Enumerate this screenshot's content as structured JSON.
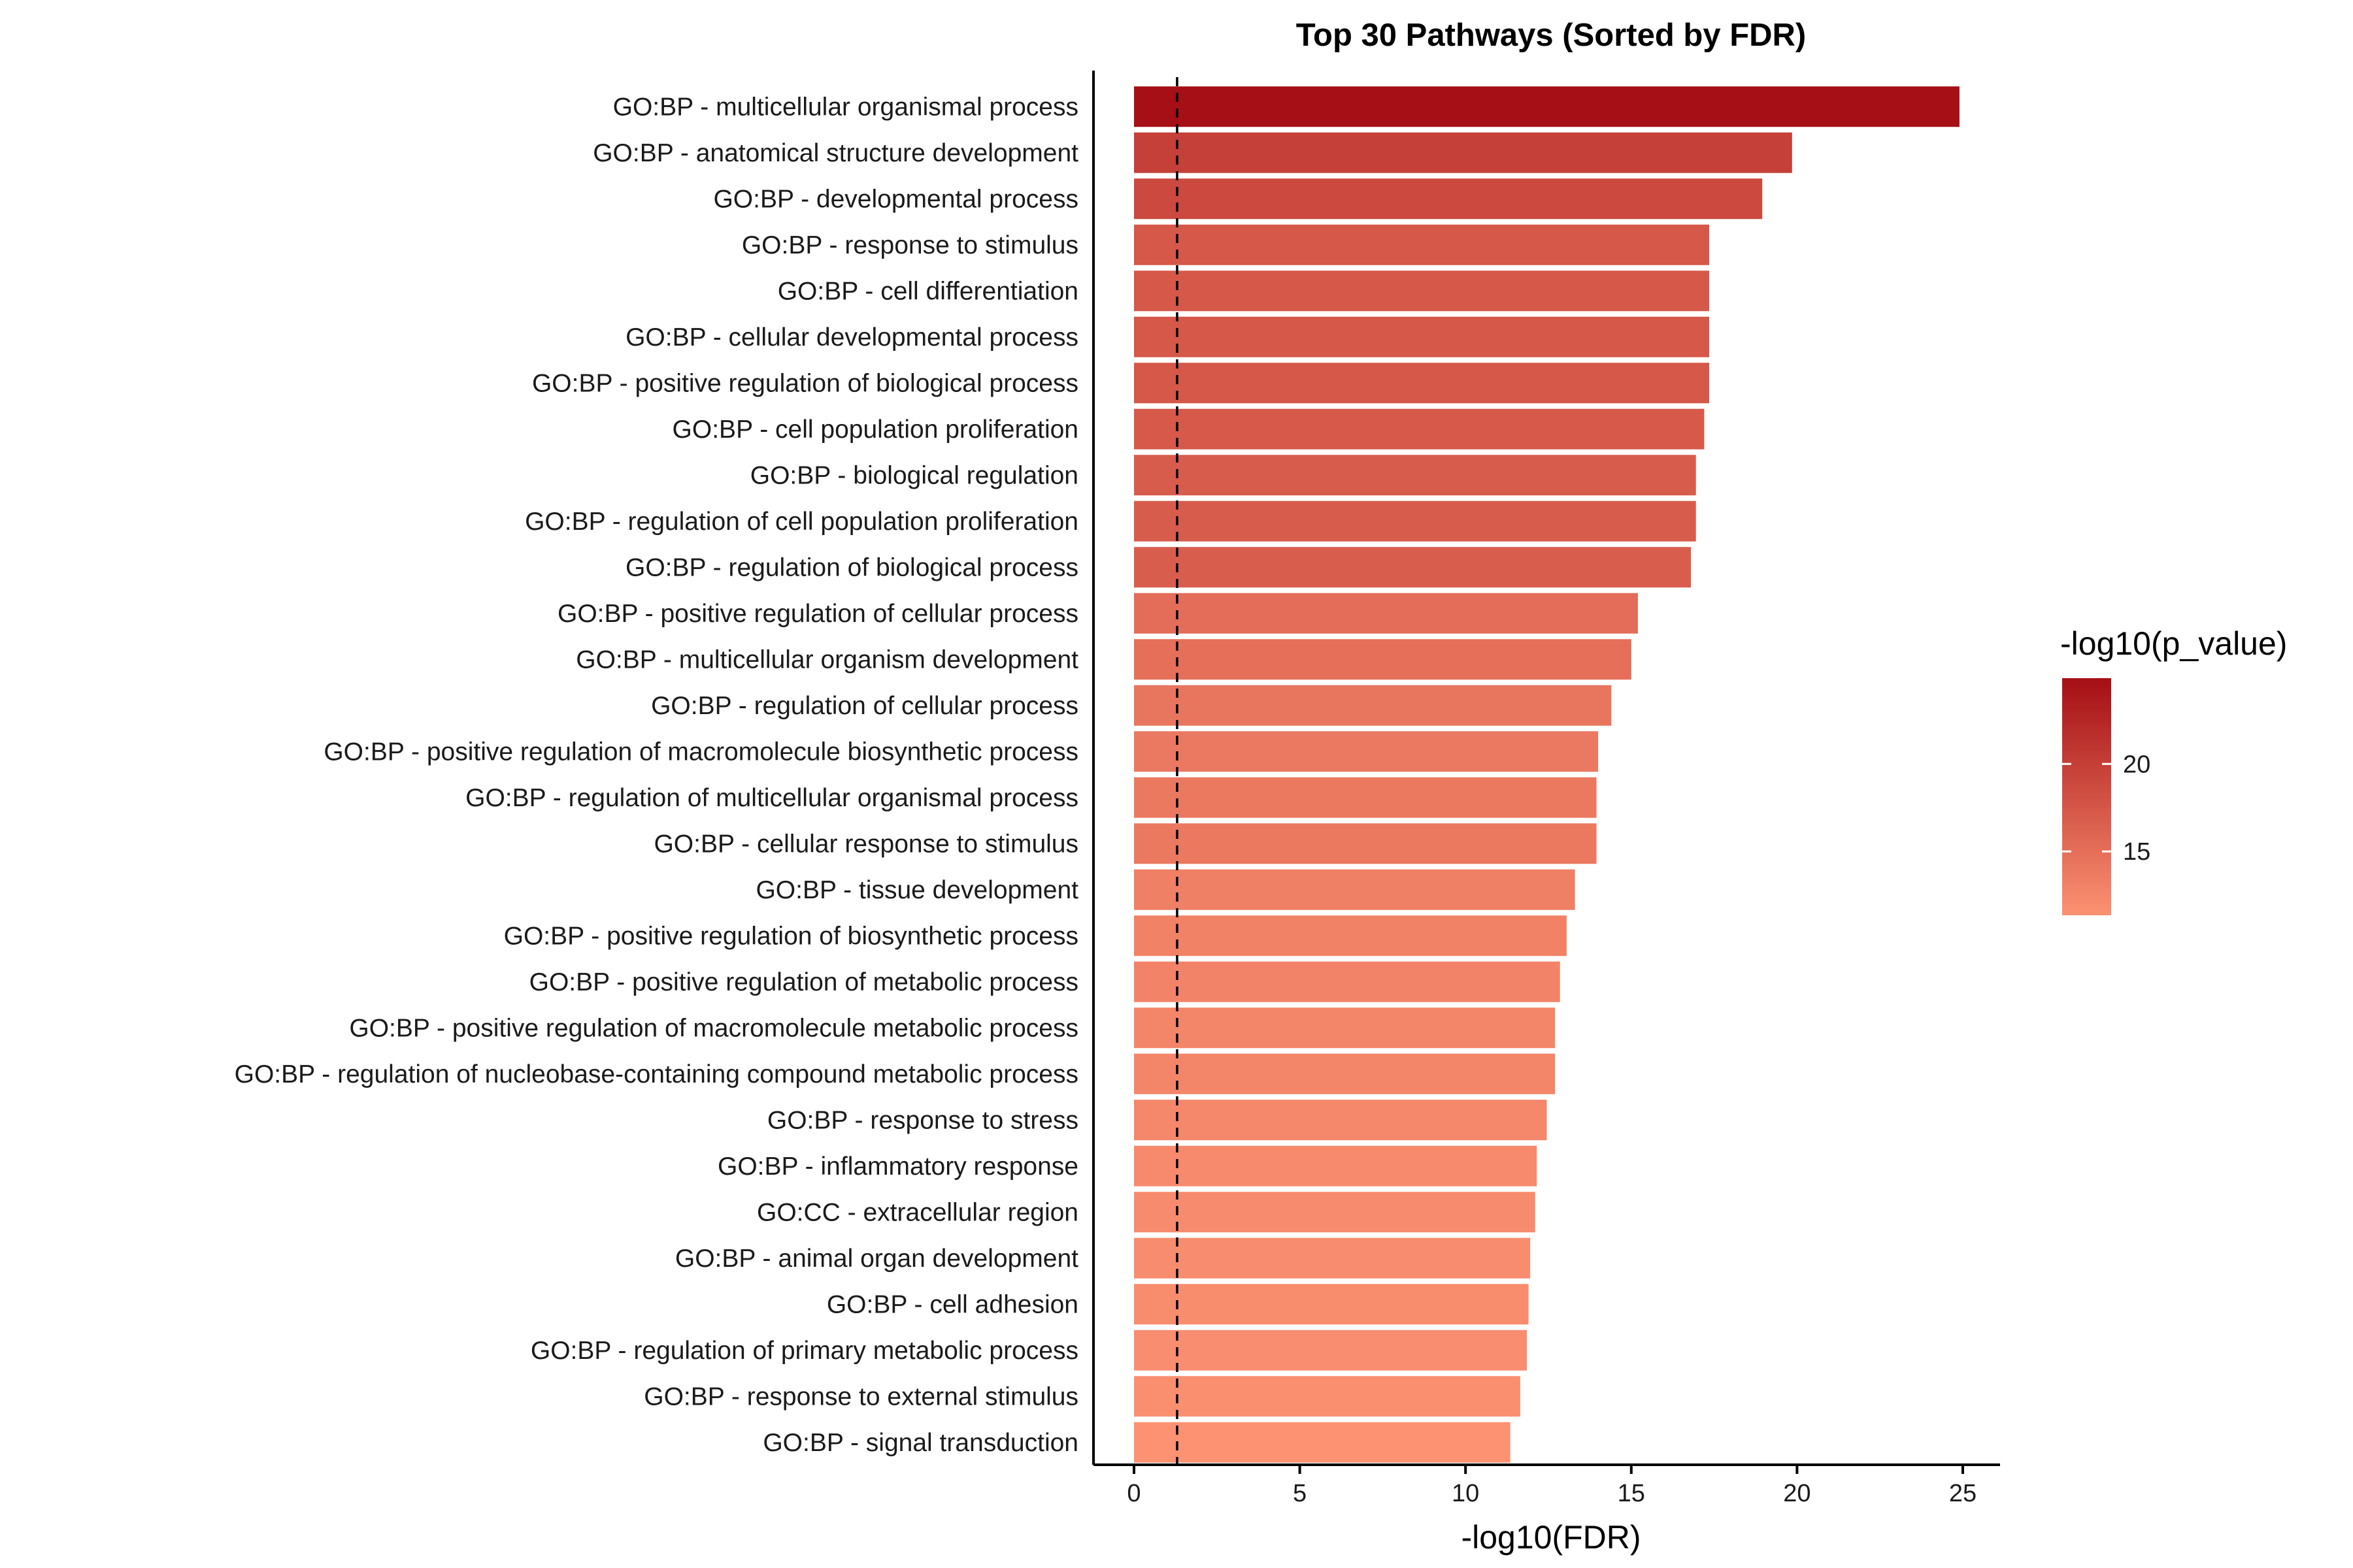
{
  "chart_data": {
    "type": "bar",
    "orientation": "horizontal",
    "title": "Top 30 Pathways (Sorted by FDR)",
    "xlabel": "-log10(FDR)",
    "ylabel": "",
    "xlim": [
      0,
      25
    ],
    "x_ticks": [
      0,
      5,
      10,
      15,
      20,
      25
    ],
    "grid": false,
    "reference_line": {
      "x": 1.3,
      "style": "dashed"
    },
    "categories": [
      "GO:BP - multicellular organismal process",
      "GO:BP - anatomical structure development",
      "GO:BP - developmental process",
      "GO:BP - response to stimulus",
      "GO:BP - cell differentiation",
      "GO:BP - cellular developmental process",
      "GO:BP - positive regulation of biological process",
      "GO:BP - cell population proliferation",
      "GO:BP - biological regulation",
      "GO:BP - regulation of cell population proliferation",
      "GO:BP - regulation of biological process",
      "GO:BP - positive regulation of cellular process",
      "GO:BP - multicellular organism development",
      "GO:BP - regulation of cellular process",
      "GO:BP - positive regulation of macromolecule biosynthetic process",
      "GO:BP - regulation of multicellular organismal process",
      "GO:BP - cellular response to stimulus",
      "GO:BP - tissue development",
      "GO:BP - positive regulation of biosynthetic process",
      "GO:BP - positive regulation of metabolic process",
      "GO:BP - positive regulation of macromolecule metabolic process",
      "GO:BP - regulation of nucleobase-containing compound metabolic process",
      "GO:BP - response to stress",
      "GO:BP - inflammatory response",
      "GO:CC - extracellular region",
      "GO:BP - animal organ development",
      "GO:BP - cell adhesion",
      "GO:BP - regulation of primary metabolic process",
      "GO:BP - response to external stimulus",
      "GO:BP - signal transduction"
    ],
    "values": [
      24.9,
      19.85,
      18.95,
      17.35,
      17.35,
      17.35,
      17.35,
      17.2,
      16.95,
      16.95,
      16.8,
      15.2,
      15.0,
      14.4,
      14.0,
      13.95,
      13.95,
      13.3,
      13.05,
      12.85,
      12.7,
      12.7,
      12.45,
      12.15,
      12.1,
      11.95,
      11.9,
      11.85,
      11.65,
      11.35
    ],
    "color_values": [
      24.9,
      19.85,
      18.95,
      17.35,
      17.35,
      17.35,
      17.35,
      17.2,
      16.95,
      16.95,
      16.8,
      15.2,
      15.0,
      14.4,
      14.0,
      13.95,
      13.95,
      13.3,
      13.05,
      12.85,
      12.7,
      12.7,
      12.45,
      12.15,
      12.1,
      11.95,
      11.9,
      11.85,
      11.65,
      11.35
    ],
    "color_scale": {
      "label": "-log10(p_value)",
      "min": 11.35,
      "max": 24.9,
      "low_color": "#fc9272",
      "high_color": "#a50f15",
      "ticks": [
        15,
        20
      ],
      "legend_position": "right"
    }
  }
}
